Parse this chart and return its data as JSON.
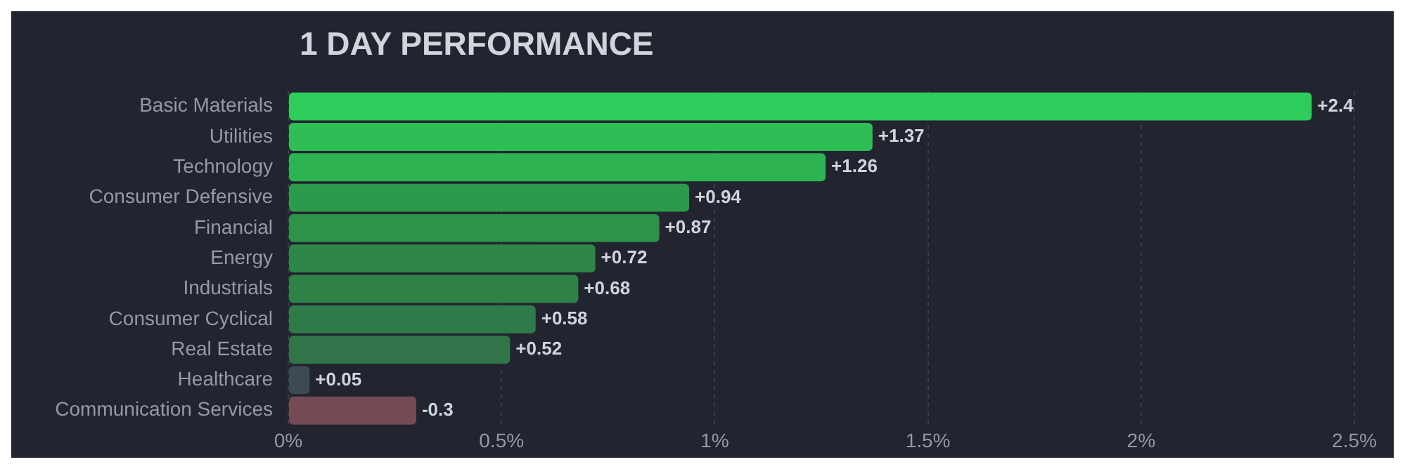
{
  "chart_data": {
    "type": "bar",
    "orientation": "horizontal",
    "title": "1 DAY PERFORMANCE",
    "categories": [
      "Basic Materials",
      "Utilities",
      "Technology",
      "Consumer Defensive",
      "Financial",
      "Energy",
      "Industrials",
      "Consumer Cyclical",
      "Real Estate",
      "Healthcare",
      "Communication Services"
    ],
    "values": [
      2.4,
      1.37,
      1.26,
      0.94,
      0.87,
      0.72,
      0.68,
      0.58,
      0.52,
      0.05,
      -0.3
    ],
    "base": [
      0,
      0,
      0,
      0,
      0,
      0,
      0,
      0,
      0,
      0,
      0.3
    ],
    "value_labels": [
      "+2.4",
      "+1.37",
      "+1.26",
      "+0.94",
      "+0.87",
      "+0.72",
      "+0.68",
      "+0.58",
      "+0.52",
      "+0.05",
      "-0.3"
    ],
    "colors": [
      "#2ecc5a",
      "#2fbe55",
      "#2db352",
      "#2c9a4b",
      "#2e9249",
      "#2e8748",
      "#2f8247",
      "#2f7a49",
      "#32744a",
      "#3e4a52",
      "#744a55"
    ],
    "xlim": [
      0,
      2.5
    ],
    "xticks": [
      {
        "value": 0,
        "label": "0%"
      },
      {
        "value": 0.5,
        "label": "0.5%"
      },
      {
        "value": 1,
        "label": "1%"
      },
      {
        "value": 1.5,
        "label": "1.5%"
      },
      {
        "value": 2,
        "label": "2%"
      },
      {
        "value": 2.5,
        "label": "2.5%"
      }
    ],
    "grid": "x",
    "legend": false
  }
}
